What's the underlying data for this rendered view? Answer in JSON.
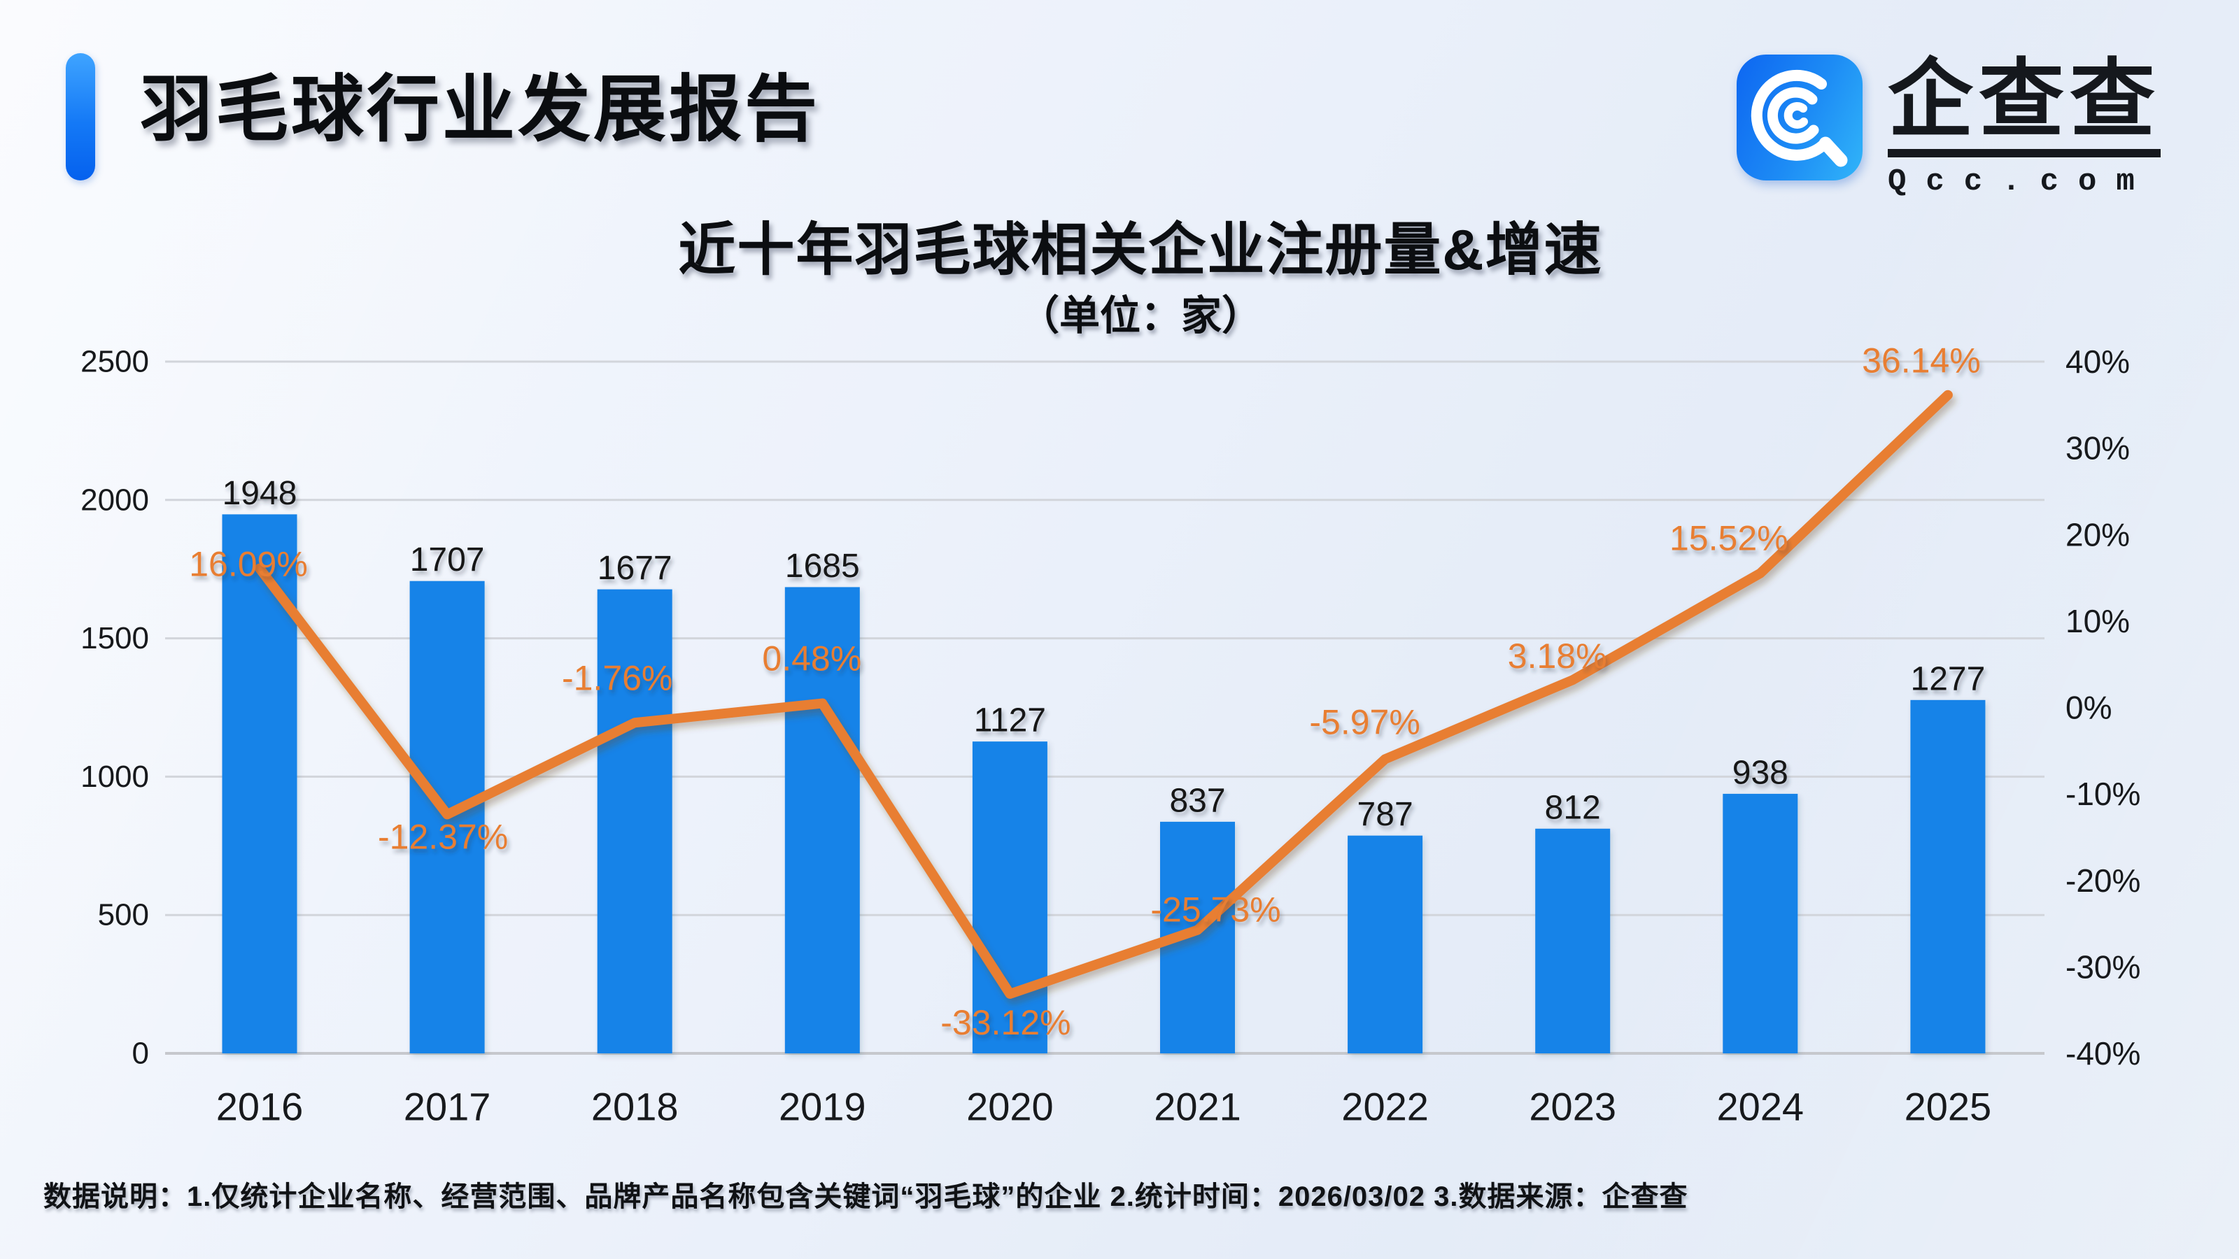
{
  "header": {
    "title": "羽毛球行业发展报告"
  },
  "logo": {
    "brand": "企查查",
    "domain": "Qcc.com",
    "icon": "qcc-magnifier-mark",
    "icon_color": "#1d8cf5"
  },
  "chart": {
    "title": "近十年羽毛球相关企业注册量&增速",
    "subtitle": "（单位：家）"
  },
  "chart_data": {
    "type": "bar",
    "combo": "bar+line dual-axis",
    "categories": [
      "2016",
      "2017",
      "2018",
      "2019",
      "2020",
      "2021",
      "2022",
      "2023",
      "2024",
      "2025"
    ],
    "series": [
      {
        "name": "注册量",
        "type": "bar",
        "axis": "left",
        "color": "#1583e8",
        "values": [
          1948,
          1707,
          1677,
          1685,
          1127,
          837,
          787,
          812,
          938,
          1277
        ]
      },
      {
        "name": "增速",
        "type": "line",
        "axis": "right",
        "color": "#e87e33",
        "values": [
          16.09,
          -12.37,
          -1.76,
          0.48,
          -33.12,
          -25.73,
          -5.97,
          3.18,
          15.52,
          36.14
        ],
        "labels": [
          "16.09%",
          "-12.37%",
          "-1.76%",
          "0.48%",
          "-33.12%",
          "-25.73%",
          "-5.97%",
          "3.18%",
          "15.52%",
          "36.14%"
        ]
      }
    ],
    "left_axis": {
      "min": 0,
      "max": 2500,
      "step": 500,
      "ticks": [
        "2500",
        "2000",
        "1500",
        "1000",
        "500",
        "0"
      ]
    },
    "right_axis": {
      "min": -40,
      "max": 40,
      "step": 10,
      "ticks": [
        "40%",
        "30%",
        "20%",
        "10%",
        "0%",
        "-10%",
        "-20%",
        "-30%",
        "-40%"
      ]
    },
    "grid": true,
    "legend_position": "none",
    "colors": {
      "grid": "#d2d5db",
      "axis_line": "#c6c8cd",
      "tick_text": "#17191c",
      "bar_label_text": "#141619",
      "line_label_text": "#e87e33"
    }
  },
  "footer": {
    "note": "数据说明：1.仅统计企业名称、经营范围、品牌产品名称包含关键词“羽毛球”的企业  2.统计时间：2026/03/02   3.数据来源：企查查"
  }
}
